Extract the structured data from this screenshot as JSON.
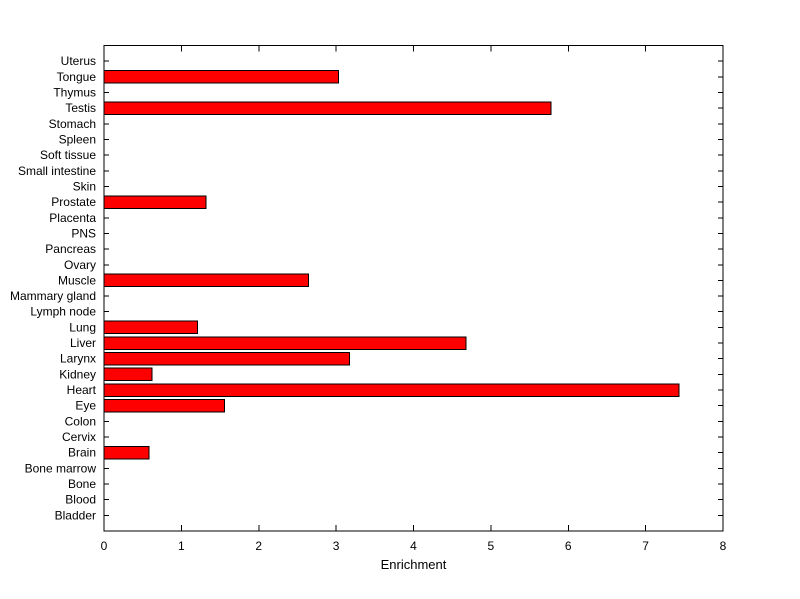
{
  "chart_data": {
    "type": "bar",
    "orientation": "horizontal",
    "title": "",
    "xlabel": "Enrichment",
    "ylabel": "",
    "xlim": [
      0,
      8
    ],
    "xticks": [
      0,
      1,
      2,
      3,
      4,
      5,
      6,
      7,
      8
    ],
    "grid": false,
    "legend": null,
    "bar_color": "#ff0000",
    "bar_edge_color": "#000000",
    "axis_color": "#000000",
    "background_color": "#ffffff",
    "categories": [
      "Uterus",
      "Tongue",
      "Thymus",
      "Testis",
      "Stomach",
      "Spleen",
      "Soft tissue",
      "Small intestine",
      "Skin",
      "Prostate",
      "Placenta",
      "PNS",
      "Pancreas",
      "Ovary",
      "Muscle",
      "Mammary gland",
      "Lymph node",
      "Lung",
      "Liver",
      "Larynx",
      "Kidney",
      "Heart",
      "Eye",
      "Colon",
      "Cervix",
      "Brain",
      "Bone marrow",
      "Bone",
      "Blood",
      "Bladder"
    ],
    "values": [
      0,
      3.03,
      0,
      5.78,
      0,
      0,
      0,
      0,
      0,
      1.32,
      0,
      0,
      0,
      0,
      2.64,
      0,
      0,
      1.21,
      4.68,
      3.17,
      0.62,
      7.43,
      1.56,
      0,
      0,
      0.58,
      0,
      0,
      0,
      0
    ],
    "categories_order_note": "listed top to bottom as displayed"
  }
}
